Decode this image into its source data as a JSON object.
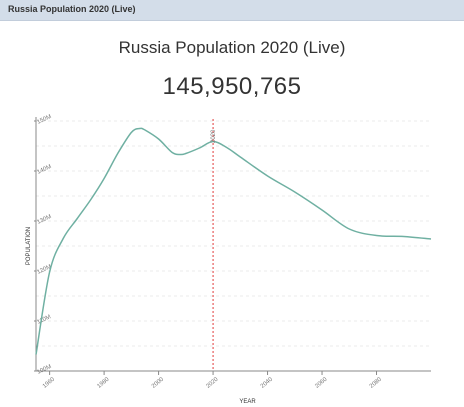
{
  "header": {
    "title": "Russia Population 2020 (Live)"
  },
  "main": {
    "title": "Russia Population 2020 (Live)",
    "live_count": "145,950,765"
  },
  "colors": {
    "line": "#6fb0a2",
    "marker": "#e03a3a",
    "grid": "#ebebeb",
    "axis": "#888888",
    "header_bg": "#d3dde9"
  },
  "chart_data": {
    "type": "line",
    "xlabel": "YEAR",
    "ylabel": "POPULATION",
    "x_ticks": [
      1960,
      1980,
      2000,
      2020,
      2040,
      2060,
      2080
    ],
    "y_ticks": [
      100,
      110,
      120,
      130,
      140,
      150
    ],
    "y_tick_labels": [
      "100M",
      "110M",
      "120M",
      "130M",
      "140M",
      "150M"
    ],
    "xlim": [
      1955,
      2100
    ],
    "ylim": [
      100,
      150
    ],
    "grid": true,
    "marker": {
      "x": 2020,
      "label": "2020"
    },
    "series": [
      {
        "x": [
          1955,
          1960,
          1965,
          1970,
          1975,
          1980,
          1985,
          1990,
          1993,
          1995,
          2000,
          2005,
          2008,
          2010,
          2015,
          2020,
          2025,
          2030,
          2040,
          2050,
          2060,
          2070,
          2080,
          2090,
          2100
        ],
        "values": [
          103.3,
          119.8,
          126.5,
          130.4,
          134.2,
          138.5,
          143.5,
          147.7,
          148.5,
          148.2,
          146.4,
          143.7,
          143.3,
          143.5,
          144.6,
          145.9,
          144.7,
          142.8,
          139.0,
          135.8,
          132.2,
          128.4,
          127.1,
          126.9,
          126.4
        ]
      }
    ]
  }
}
